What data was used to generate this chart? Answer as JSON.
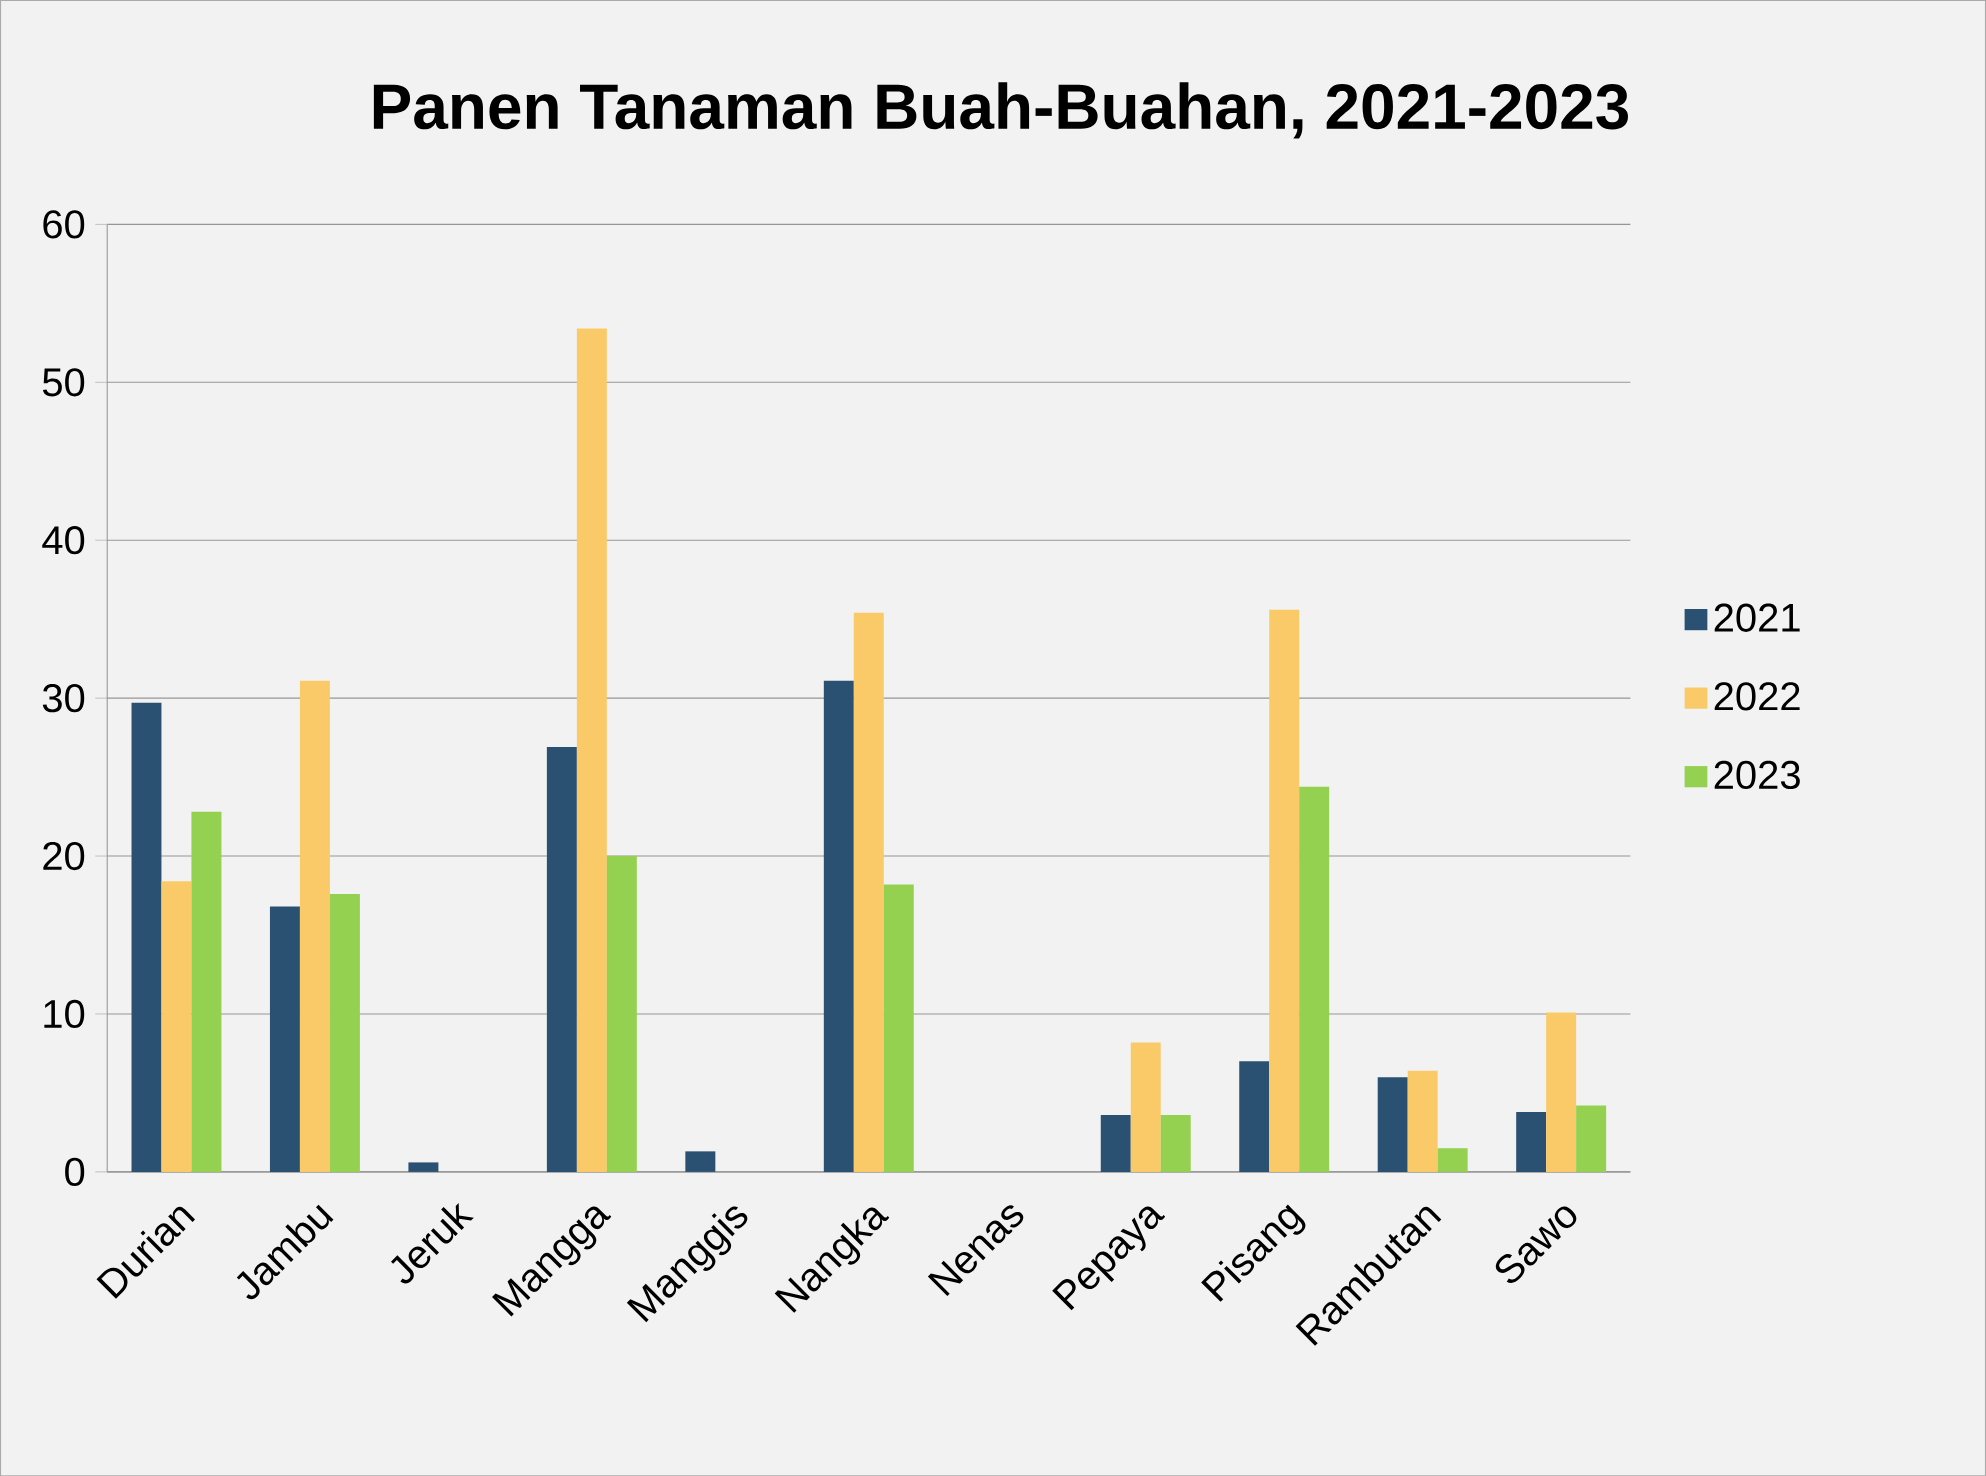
{
  "chart_data": {
    "type": "bar",
    "title": "Panen Tanaman Buah-Buahan, 2021-2023",
    "categories": [
      "Durian",
      "Jambu",
      "Jeruk",
      "Mangga",
      "Manggis",
      "Nangka",
      "Nenas",
      "Pepaya",
      "Pisang",
      "Rambutan",
      "Sawo"
    ],
    "series": [
      {
        "name": "2021",
        "color": "#2a5172",
        "values": [
          29.7,
          16.8,
          0.6,
          26.9,
          1.3,
          31.1,
          0,
          3.6,
          7.0,
          6.0,
          3.8
        ]
      },
      {
        "name": "2022",
        "color": "#fbca68",
        "values": [
          18.4,
          31.1,
          0,
          53.4,
          0,
          35.4,
          0,
          8.2,
          35.6,
          6.4,
          10.1
        ]
      },
      {
        "name": "2023",
        "color": "#95d150",
        "values": [
          22.8,
          17.6,
          0,
          20.0,
          0,
          18.2,
          0,
          3.6,
          24.4,
          1.5,
          4.2
        ]
      }
    ],
    "ylim": [
      0,
      60
    ],
    "yticks": [
      0,
      10,
      20,
      30,
      40,
      50,
      60
    ],
    "grid": "y",
    "legend": "right"
  }
}
